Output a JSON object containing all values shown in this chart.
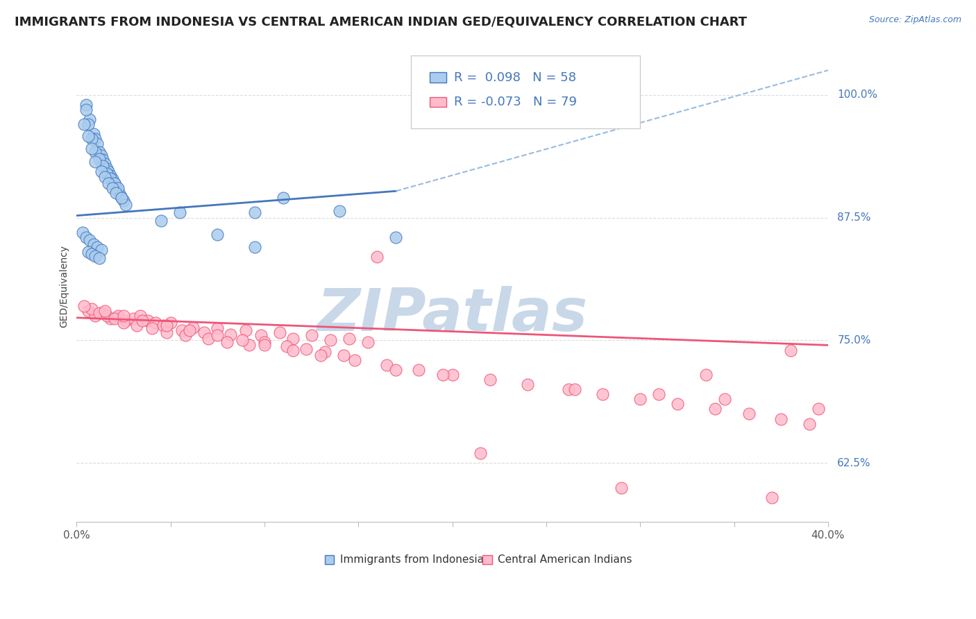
{
  "title": "IMMIGRANTS FROM INDONESIA VS CENTRAL AMERICAN INDIAN GED/EQUIVALENCY CORRELATION CHART",
  "source": "Source: ZipAtlas.com",
  "ylabel": "GED/Equivalency",
  "xlim": [
    0.0,
    0.4
  ],
  "ylim": [
    0.565,
    1.045
  ],
  "ytick_values": [
    1.0,
    0.875,
    0.75,
    0.625
  ],
  "ytick_labels": [
    "100.0%",
    "87.5%",
    "75.0%",
    "62.5%"
  ],
  "xtick_positions": [
    0.0,
    0.05,
    0.1,
    0.15,
    0.2,
    0.25,
    0.3,
    0.35,
    0.4
  ],
  "xtick_edge_labels": [
    "0.0%",
    "40.0%"
  ],
  "blue_color": "#4477BB",
  "blue_fill": "#AACCEE",
  "pink_color": "#EE5577",
  "pink_fill": "#FFBBCC",
  "dash_color": "#99BBDD",
  "grid_color": "#DDDDDD",
  "watermark_color": "#C8D8E8",
  "legend_r1": "R =  0.098",
  "legend_n1": "N = 58",
  "legend_r2": "R = -0.073",
  "legend_n2": "N = 79",
  "legend_label1": "Immigrants from Indonesia",
  "legend_label2": "Central American Indians",
  "blue_trend": [
    0.0,
    0.17,
    0.877,
    0.902
  ],
  "blue_dash": [
    0.17,
    0.4,
    0.902,
    1.025
  ],
  "pink_trend": [
    0.0,
    0.4,
    0.773,
    0.745
  ],
  "blue_pts_x": [
    0.005,
    0.007,
    0.009,
    0.01,
    0.011,
    0.012,
    0.013,
    0.014,
    0.015,
    0.016,
    0.017,
    0.018,
    0.019,
    0.02,
    0.021,
    0.022,
    0.023,
    0.024,
    0.025,
    0.026,
    0.005,
    0.006,
    0.008,
    0.01,
    0.012,
    0.014,
    0.016,
    0.018,
    0.02,
    0.022,
    0.004,
    0.006,
    0.008,
    0.01,
    0.013,
    0.015,
    0.017,
    0.019,
    0.021,
    0.024,
    0.003,
    0.005,
    0.007,
    0.009,
    0.011,
    0.013,
    0.055,
    0.095,
    0.11,
    0.14,
    0.006,
    0.008,
    0.01,
    0.012,
    0.17,
    0.095,
    0.075,
    0.045
  ],
  "blue_pts_y": [
    0.99,
    0.975,
    0.96,
    0.955,
    0.95,
    0.942,
    0.938,
    0.934,
    0.93,
    0.925,
    0.922,
    0.918,
    0.914,
    0.91,
    0.906,
    0.902,
    0.898,
    0.895,
    0.892,
    0.888,
    0.985,
    0.97,
    0.955,
    0.942,
    0.935,
    0.928,
    0.92,
    0.915,
    0.91,
    0.905,
    0.97,
    0.958,
    0.945,
    0.932,
    0.922,
    0.916,
    0.91,
    0.905,
    0.9,
    0.895,
    0.86,
    0.855,
    0.852,
    0.848,
    0.845,
    0.842,
    0.88,
    0.88,
    0.895,
    0.882,
    0.84,
    0.838,
    0.836,
    0.834,
    0.855,
    0.845,
    0.858,
    0.872
  ],
  "pink_pts_x": [
    0.006,
    0.01,
    0.014,
    0.018,
    0.022,
    0.026,
    0.03,
    0.034,
    0.038,
    0.042,
    0.046,
    0.05,
    0.056,
    0.062,
    0.068,
    0.075,
    0.082,
    0.09,
    0.098,
    0.108,
    0.115,
    0.125,
    0.135,
    0.145,
    0.155,
    0.008,
    0.012,
    0.016,
    0.02,
    0.025,
    0.032,
    0.04,
    0.048,
    0.058,
    0.07,
    0.08,
    0.092,
    0.1,
    0.112,
    0.122,
    0.132,
    0.142,
    0.004,
    0.015,
    0.025,
    0.035,
    0.048,
    0.06,
    0.075,
    0.088,
    0.1,
    0.115,
    0.13,
    0.148,
    0.165,
    0.182,
    0.2,
    0.22,
    0.24,
    0.262,
    0.28,
    0.3,
    0.32,
    0.34,
    0.358,
    0.375,
    0.39,
    0.17,
    0.195,
    0.265,
    0.31,
    0.345,
    0.38,
    0.215,
    0.29,
    0.335,
    0.37,
    0.395,
    0.16
  ],
  "pink_pts_y": [
    0.78,
    0.775,
    0.778,
    0.772,
    0.775,
    0.77,
    0.772,
    0.775,
    0.77,
    0.768,
    0.765,
    0.768,
    0.76,
    0.763,
    0.758,
    0.762,
    0.756,
    0.76,
    0.755,
    0.758,
    0.752,
    0.755,
    0.75,
    0.752,
    0.748,
    0.782,
    0.778,
    0.775,
    0.772,
    0.768,
    0.765,
    0.762,
    0.758,
    0.755,
    0.752,
    0.748,
    0.745,
    0.748,
    0.744,
    0.741,
    0.738,
    0.735,
    0.785,
    0.78,
    0.775,
    0.77,
    0.765,
    0.76,
    0.755,
    0.75,
    0.745,
    0.74,
    0.735,
    0.73,
    0.725,
    0.72,
    0.715,
    0.71,
    0.705,
    0.7,
    0.695,
    0.69,
    0.685,
    0.68,
    0.675,
    0.67,
    0.665,
    0.72,
    0.715,
    0.7,
    0.695,
    0.69,
    0.74,
    0.635,
    0.6,
    0.715,
    0.59,
    0.68,
    0.835
  ],
  "title_fontsize": 13,
  "axis_label_fontsize": 10,
  "tick_fontsize": 11,
  "source_fontsize": 9,
  "legend_fontsize": 13
}
